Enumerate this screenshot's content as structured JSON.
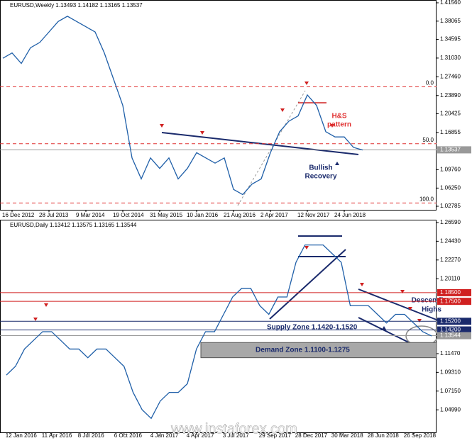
{
  "chart_data": [
    {
      "type": "line",
      "title": "EURUSD,Weekly  1.13493 1.14182 1.13165 1.13537",
      "color": "#1f5fa8",
      "categories": [
        null,
        "16 Dec 2012",
        null,
        null,
        null,
        "28 Jul 2013",
        null,
        null,
        null,
        "9 Mar 2014",
        null,
        null,
        null,
        "19 Oct 2014",
        null,
        null,
        null,
        "31 May 2015",
        null,
        null,
        null,
        "10 Jan 2016",
        null,
        null,
        null,
        "21 Aug 2016",
        null,
        null,
        null,
        "2 Apr 2017",
        null,
        null,
        null,
        "12 Nov 2017",
        null,
        null,
        null,
        "24 Jun 2018",
        null,
        null
      ],
      "values": [
        1.31,
        1.32,
        1.3,
        1.33,
        1.34,
        1.36,
        1.38,
        1.39,
        1.38,
        1.37,
        1.36,
        1.32,
        1.27,
        1.22,
        1.12,
        1.08,
        1.12,
        1.1,
        1.12,
        1.08,
        1.1,
        1.13,
        1.12,
        1.11,
        1.12,
        1.06,
        1.05,
        1.07,
        1.08,
        1.13,
        1.17,
        1.19,
        1.2,
        1.24,
        1.22,
        1.17,
        1.16,
        1.16,
        1.14,
        1.135
      ],
      "ylim": [
        1.0211,
        1.4196
      ],
      "yticks": [
        {
          "value": 1.4156,
          "label": "1.41560"
        },
        {
          "value": 1.38065,
          "label": "1.38065"
        },
        {
          "value": 1.34595,
          "label": "1.34595"
        },
        {
          "value": 1.3103,
          "label": "1.31030"
        },
        {
          "value": 1.2746,
          "label": "1.27460"
        },
        {
          "value": 1.2389,
          "label": "1.23890"
        },
        {
          "value": 1.20425,
          "label": "1.20425"
        },
        {
          "value": 1.16855,
          "label": "1.16855"
        },
        {
          "value": 1.0976,
          "label": "1.09760"
        },
        {
          "value": 1.0625,
          "label": "1.06250"
        },
        {
          "value": 1.02785,
          "label": "1.02785"
        }
      ],
      "levels": [
        {
          "value": 1.2555,
          "label": "0.0",
          "color": "#e03030",
          "dashed": true
        },
        {
          "value": 1.147,
          "label": "50.0",
          "color": "#e03030",
          "dashed": true
        },
        {
          "value": 1.0341,
          "label": "100.0",
          "color": "#e03030",
          "dashed": true
        },
        {
          "value": 1.13537,
          "label": "1.13537",
          "color": "#999999",
          "axis_box": true
        }
      ],
      "annotations": [
        "H&S",
        "pattern",
        "Bullish",
        "Recovery"
      ]
    },
    {
      "type": "line",
      "title": "EURUSD,Daily  1.13412 1.13575 1.13165 1.13544",
      "color": "#1f5fa8",
      "categories": [
        null,
        "12 Jan 2016",
        null,
        null,
        null,
        "11 Apr 2016",
        null,
        null,
        null,
        "8 Jul 2016",
        null,
        null,
        null,
        "6 Oct 2016",
        null,
        null,
        null,
        "4 Jan 2017",
        null,
        null,
        null,
        "4 Apr 2017",
        null,
        null,
        null,
        "3 Jul 2017",
        null,
        null,
        null,
        "29 Sep 2017",
        null,
        null,
        null,
        "28 Dec 2017",
        null,
        null,
        null,
        "30 Mar 2018",
        null,
        null,
        null,
        "28 Jun 2018",
        null,
        null,
        null,
        "26 Sep 2018",
        null,
        null
      ],
      "values": [
        1.09,
        1.1,
        1.12,
        1.13,
        1.14,
        1.14,
        1.13,
        1.12,
        1.12,
        1.11,
        1.12,
        1.12,
        1.11,
        1.1,
        1.07,
        1.05,
        1.04,
        1.06,
        1.07,
        1.07,
        1.08,
        1.12,
        1.14,
        1.14,
        1.16,
        1.18,
        1.19,
        1.19,
        1.17,
        1.16,
        1.18,
        1.18,
        1.22,
        1.24,
        1.24,
        1.24,
        1.23,
        1.22,
        1.17,
        1.17,
        1.17,
        1.16,
        1.15,
        1.16,
        1.16,
        1.15,
        1.14,
        1.135
      ],
      "ylim": [
        1.0239,
        1.2683
      ],
      "yticks": [
        {
          "value": 1.2659,
          "label": "1.26590"
        },
        {
          "value": 1.2443,
          "label": "1.24430"
        },
        {
          "value": 1.2227,
          "label": "1.22270"
        },
        {
          "value": 1.2011,
          "label": "1.20110"
        },
        {
          "value": 1.1147,
          "label": "1.11470"
        },
        {
          "value": 1.0931,
          "label": "1.09310"
        },
        {
          "value": 1.0715,
          "label": "1.07150"
        },
        {
          "value": 1.0499,
          "label": "1.04990"
        }
      ],
      "levels": [
        {
          "value": 1.185,
          "label": "1.18500",
          "color": "#d02020",
          "axis_box": true
        },
        {
          "value": 1.175,
          "label": "1.17500",
          "color": "#d02020",
          "axis_box": true
        },
        {
          "value": 1.152,
          "label": "1.15200",
          "color": "#1a2a6c",
          "axis_box": true
        },
        {
          "value": 1.142,
          "label": "1.14200",
          "color": "#1a2a6c",
          "axis_box": true
        },
        {
          "value": 1.13544,
          "label": "1.13544",
          "color": "#999999",
          "axis_box": true
        }
      ],
      "zones": [
        {
          "from": 1.11,
          "to": 1.1275,
          "label": "Demand Zone 1.1100-1.1275"
        }
      ],
      "annotations": [
        "Supply Zone 1.1420-1.1520",
        "Descending",
        "Highs"
      ]
    }
  ],
  "watermark": "www.instaforex.com"
}
